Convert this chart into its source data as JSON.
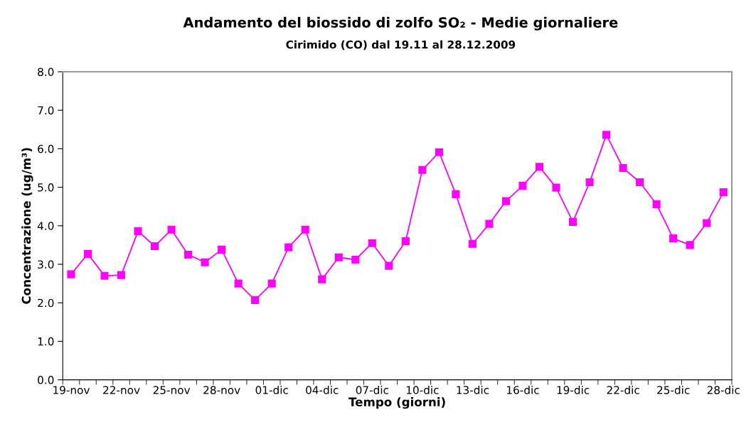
{
  "chart_data": {
    "type": "line",
    "title": "Andamento del biossido di zolfo SO₂ - Medie giornaliere",
    "subtitle": "Cirimido (CO) dal 19.11 al 28.12.2009",
    "xlabel": "Tempo (giorni)",
    "ylabel": "Concentrazione (ug/m³)",
    "categories": [
      "19-nov",
      null,
      null,
      "22-nov",
      null,
      null,
      "25-nov",
      null,
      null,
      "28-nov",
      null,
      null,
      "01-dic",
      null,
      null,
      "04-dic",
      null,
      null,
      "07-dic",
      null,
      null,
      "10-dic",
      null,
      null,
      "13-dic",
      null,
      null,
      "16-dic",
      null,
      null,
      "19-dic",
      null,
      null,
      "22-dic",
      null,
      null,
      "25-dic",
      null,
      null,
      "28-dic"
    ],
    "series": [
      {
        "color": "#ff00ff",
        "values": [
          2.74,
          3.27,
          2.7,
          2.72,
          3.86,
          3.47,
          3.9,
          3.25,
          3.05,
          3.38,
          2.5,
          2.07,
          2.5,
          3.44,
          3.9,
          2.61,
          3.18,
          3.12,
          3.55,
          2.96,
          3.6,
          5.45,
          5.91,
          4.82,
          3.53,
          4.05,
          4.64,
          5.04,
          5.53,
          4.99,
          4.1,
          5.13,
          6.36,
          5.5,
          5.13,
          4.56,
          3.67,
          3.5,
          4.07,
          4.87
        ]
      }
    ],
    "ylim": [
      0,
      8
    ],
    "yticks": [
      {
        "value": 0,
        "label": "0.0"
      },
      {
        "value": 1,
        "label": "1.0"
      },
      {
        "value": 2,
        "label": "2.0"
      },
      {
        "value": 3,
        "label": "3.0"
      },
      {
        "value": 4,
        "label": "4.0"
      },
      {
        "value": 5,
        "label": "5.0"
      },
      {
        "value": 6,
        "label": "6.0"
      },
      {
        "value": 7,
        "label": "7.0"
      },
      {
        "value": 8,
        "label": "8.0"
      }
    ],
    "marker": "square",
    "line_style": "solid",
    "grid": false
  }
}
